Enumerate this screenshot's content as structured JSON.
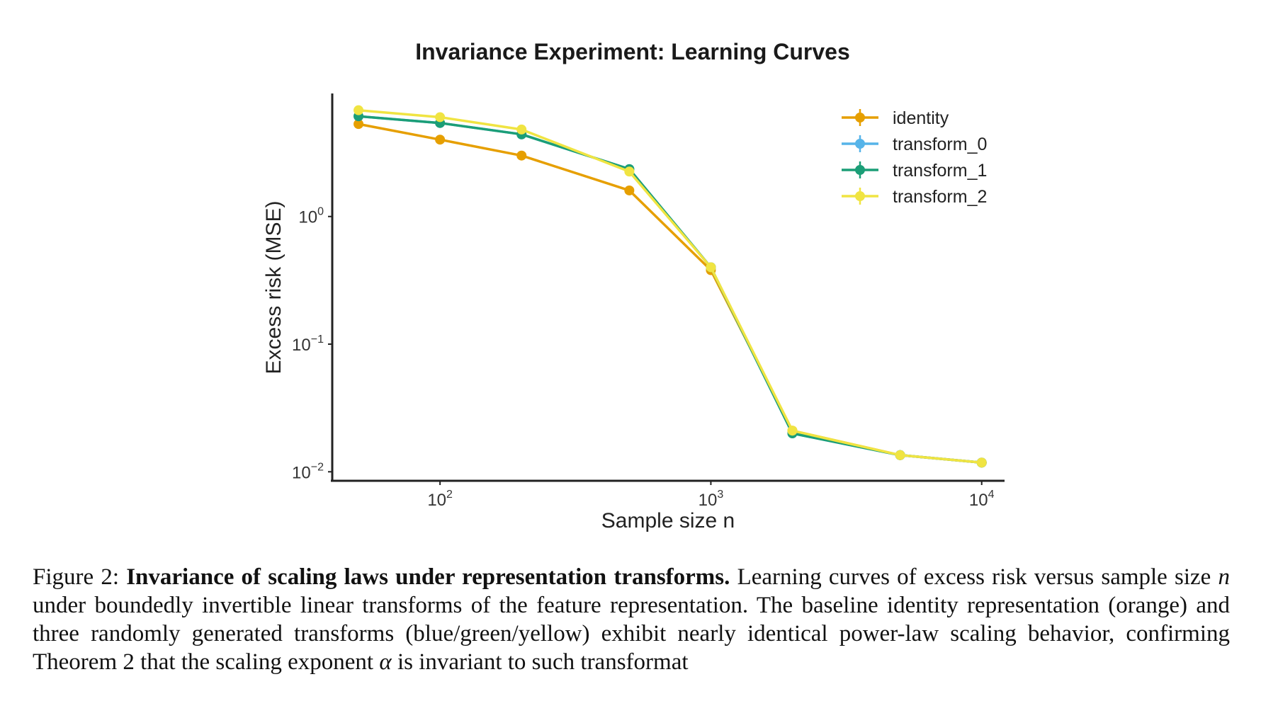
{
  "chart_data": {
    "type": "line",
    "title": "Invariance Experiment: Learning Curves",
    "xlabel": "Sample size n",
    "ylabel": "Excess risk (MSE)",
    "x_scale": "log",
    "y_scale": "log",
    "xlim": [
      40,
      12000
    ],
    "ylim": [
      0.0085,
      9.2
    ],
    "x_ticks": [
      {
        "value": 100,
        "base": "10",
        "exp": "2"
      },
      {
        "value": 1000,
        "base": "10",
        "exp": "3"
      },
      {
        "value": 10000,
        "base": "10",
        "exp": "4"
      }
    ],
    "y_ticks": [
      {
        "value": 1,
        "base": "10",
        "exp": "0"
      },
      {
        "value": 0.1,
        "base": "10",
        "exp": "−1"
      },
      {
        "value": 0.01,
        "base": "10",
        "exp": "−2"
      }
    ],
    "x": [
      50,
      100,
      200,
      500,
      1000,
      2000,
      5000,
      10000
    ],
    "series": [
      {
        "name": "identity",
        "color": "#E69F00",
        "values": [
          5.3,
          4.0,
          3.0,
          1.6,
          0.38,
          0.021,
          0.0135,
          0.0118
        ]
      },
      {
        "name": "transform_0",
        "color": "#56B4E9",
        "values": [
          6.1,
          5.4,
          4.4,
          2.35,
          0.4,
          0.02,
          0.0135,
          0.0118
        ]
      },
      {
        "name": "transform_1",
        "color": "#1B9E77",
        "values": [
          6.1,
          5.4,
          4.4,
          2.35,
          0.4,
          0.02,
          0.0135,
          0.0118
        ]
      },
      {
        "name": "transform_2",
        "color": "#F0E442",
        "values": [
          6.8,
          6.0,
          4.8,
          2.25,
          0.4,
          0.021,
          0.0135,
          0.0118
        ]
      }
    ],
    "legend_position": "top-right",
    "grid": false
  },
  "caption": {
    "label": "Figure 2:",
    "bold": "Invariance of scaling laws under representation transforms.",
    "part1": "Learning curves of excess risk versus sample size",
    "var_n": "n",
    "part2": "under boundedly invertible linear transforms of the feature representation. The baseline identity representation (orange) and three randomly generated transforms (blue/green/yellow) exhibit nearly identical power-law scaling behavior, confirming Theorem 2 that the scaling exponent",
    "var_alpha": "α",
    "part3": "is invariant to such transformat"
  }
}
